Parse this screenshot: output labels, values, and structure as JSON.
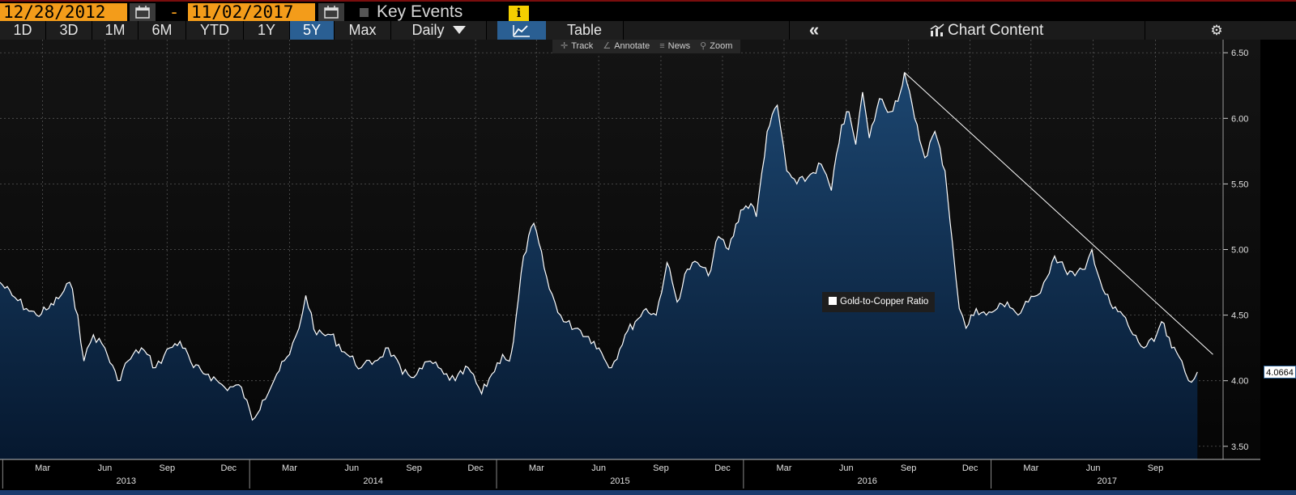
{
  "toolbar": {
    "start_date": "12/28/2012",
    "end_date": "11/02/2017",
    "date_separator": "-",
    "key_events_label": "Key Events",
    "info_label": "i",
    "ranges": [
      "1D",
      "3D",
      "1M",
      "6M",
      "YTD",
      "1Y",
      "5Y",
      "Max"
    ],
    "active_range": "5Y",
    "frequency_label": "Daily",
    "table_label": "Table",
    "chart_content_label": "Chart Content",
    "chart_tools": [
      "Track",
      "Annotate",
      "News",
      "Zoom"
    ]
  },
  "colors": {
    "accent": "#f39c1a",
    "active_button": "#2a5f93",
    "line": "#ffffff",
    "area_top": "#1c4670",
    "area_bottom": "#06182f",
    "background": "#000000"
  },
  "chart_data": {
    "type": "area",
    "series": [
      {
        "name": "Gold-to-Copper Ratio",
        "x": [
          "2012-12-28",
          "2013-01-15",
          "2013-02-05",
          "2013-02-20",
          "2013-03-10",
          "2013-03-28",
          "2013-04-10",
          "2013-04-22",
          "2013-05-01",
          "2013-05-15",
          "2013-06-01",
          "2013-06-20",
          "2013-07-05",
          "2013-07-25",
          "2013-08-15",
          "2013-09-05",
          "2013-09-20",
          "2013-10-10",
          "2013-11-01",
          "2013-11-25",
          "2013-12-20",
          "2014-01-05",
          "2014-01-20",
          "2014-02-10",
          "2014-03-01",
          "2014-03-15",
          "2014-03-25",
          "2014-04-10",
          "2014-05-01",
          "2014-05-25",
          "2014-06-15",
          "2014-07-05",
          "2014-07-25",
          "2014-08-15",
          "2014-09-05",
          "2014-09-25",
          "2014-10-15",
          "2014-11-01",
          "2014-11-20",
          "2014-12-10",
          "2014-12-25",
          "2015-01-10",
          "2015-01-20",
          "2015-01-26",
          "2015-02-10",
          "2015-02-25",
          "2015-03-20",
          "2015-04-10",
          "2015-05-01",
          "2015-05-25",
          "2015-06-20",
          "2015-07-10",
          "2015-07-25",
          "2015-08-10",
          "2015-08-25",
          "2015-09-10",
          "2015-09-25",
          "2015-10-10",
          "2015-10-25",
          "2015-11-10",
          "2015-11-25",
          "2015-12-10",
          "2015-12-28",
          "2016-01-12",
          "2016-01-20",
          "2016-02-05",
          "2016-02-20",
          "2016-03-05",
          "2016-03-20",
          "2016-04-05",
          "2016-04-25",
          "2016-05-10",
          "2016-05-25",
          "2016-06-05",
          "2016-06-15",
          "2016-06-25",
          "2016-07-05",
          "2016-07-20",
          "2016-08-05",
          "2016-08-20",
          "2016-08-26",
          "2016-09-10",
          "2016-09-25",
          "2016-10-10",
          "2016-10-25",
          "2016-11-05",
          "2016-11-15",
          "2016-11-25",
          "2016-12-10",
          "2016-12-25",
          "2017-01-10",
          "2017-01-25",
          "2017-02-10",
          "2017-02-25",
          "2017-03-10",
          "2017-03-20",
          "2017-04-05",
          "2017-04-20",
          "2017-05-05",
          "2017-05-20",
          "2017-05-30",
          "2017-06-15",
          "2017-06-30",
          "2017-07-15",
          "2017-07-30",
          "2017-08-15",
          "2017-08-30",
          "2017-09-10",
          "2017-09-25",
          "2017-10-10",
          "2017-10-20",
          "2017-11-02"
        ],
        "y": [
          4.75,
          4.65,
          4.55,
          4.5,
          4.55,
          4.65,
          4.75,
          4.5,
          4.15,
          4.35,
          4.25,
          4.0,
          4.15,
          4.25,
          4.1,
          4.25,
          4.3,
          4.1,
          4.05,
          3.95,
          3.95,
          3.7,
          3.85,
          4.05,
          4.2,
          4.4,
          4.65,
          4.35,
          4.35,
          4.2,
          4.1,
          4.15,
          4.25,
          4.05,
          4.05,
          4.15,
          4.05,
          4.0,
          4.1,
          3.9,
          4.05,
          4.2,
          4.15,
          4.3,
          4.95,
          5.2,
          4.7,
          4.45,
          4.4,
          4.3,
          4.1,
          4.35,
          4.45,
          4.55,
          4.5,
          4.9,
          4.6,
          4.85,
          4.9,
          4.8,
          5.1,
          5.0,
          5.3,
          5.35,
          5.25,
          5.9,
          6.1,
          5.6,
          5.5,
          5.55,
          5.65,
          5.45,
          5.95,
          6.05,
          5.8,
          6.2,
          5.85,
          6.15,
          6.05,
          6.2,
          6.35,
          6.0,
          5.7,
          5.9,
          5.6,
          5.05,
          4.55,
          4.4,
          4.55,
          4.5,
          4.55,
          4.6,
          4.5,
          4.6,
          4.65,
          4.75,
          4.95,
          4.85,
          4.8,
          4.85,
          5.0,
          4.7,
          4.55,
          4.5,
          4.35,
          4.25,
          4.3,
          4.45,
          4.25,
          4.15,
          4.0,
          4.0664
        ]
      }
    ],
    "trendline": {
      "from": [
        "2016-08-26",
        6.35
      ],
      "to": [
        "2017-11-25",
        4.2
      ]
    },
    "last_value": "4.0664",
    "ylim": [
      3.4,
      6.6
    ],
    "yticks": [
      3.5,
      4.0,
      4.5,
      5.0,
      5.5,
      6.0,
      6.5
    ],
    "ytick_labels": [
      "3.50",
      "4.00",
      "4.50",
      "5.00",
      "5.50",
      "6.00",
      "6.50"
    ],
    "xlim": [
      "2012-12-28",
      "2017-12-10"
    ],
    "month_ticks": [
      {
        "date": "2013-03-01",
        "label": "Mar"
      },
      {
        "date": "2013-06-01",
        "label": "Jun"
      },
      {
        "date": "2013-09-01",
        "label": "Sep"
      },
      {
        "date": "2013-12-01",
        "label": "Dec"
      },
      {
        "date": "2014-03-01",
        "label": "Mar"
      },
      {
        "date": "2014-06-01",
        "label": "Jun"
      },
      {
        "date": "2014-09-01",
        "label": "Sep"
      },
      {
        "date": "2014-12-01",
        "label": "Dec"
      },
      {
        "date": "2015-03-01",
        "label": "Mar"
      },
      {
        "date": "2015-06-01",
        "label": "Jun"
      },
      {
        "date": "2015-09-01",
        "label": "Sep"
      },
      {
        "date": "2015-12-01",
        "label": "Dec"
      },
      {
        "date": "2016-03-01",
        "label": "Mar"
      },
      {
        "date": "2016-06-01",
        "label": "Jun"
      },
      {
        "date": "2016-09-01",
        "label": "Sep"
      },
      {
        "date": "2016-12-01",
        "label": "Dec"
      },
      {
        "date": "2017-03-01",
        "label": "Mar"
      },
      {
        "date": "2017-06-01",
        "label": "Jun"
      },
      {
        "date": "2017-09-01",
        "label": "Sep"
      }
    ],
    "year_labels": [
      {
        "label": "2013",
        "from": "2013-01-01",
        "to": "2014-01-01"
      },
      {
        "label": "2014",
        "from": "2014-01-01",
        "to": "2015-01-01"
      },
      {
        "label": "2015",
        "from": "2015-01-01",
        "to": "2016-01-01"
      },
      {
        "label": "2016",
        "from": "2016-01-01",
        "to": "2017-01-01"
      },
      {
        "label": "2017",
        "from": "2017-01-01",
        "to": "2017-12-10"
      }
    ],
    "grid": true,
    "legend_position": "center",
    "legend_label": "Gold-to-Copper Ratio"
  }
}
